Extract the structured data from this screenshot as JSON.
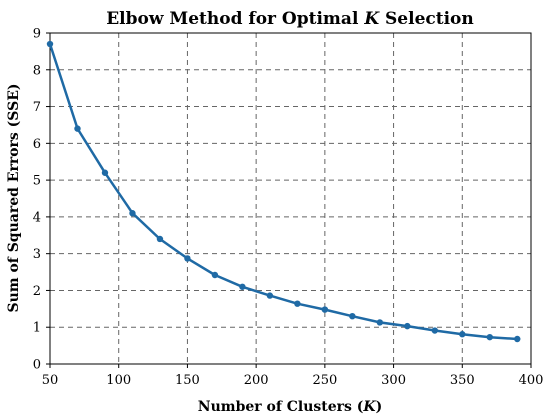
{
  "chart_data": {
    "type": "line",
    "title_prefix": "Elbow Method for Optimal ",
    "title_var": "K",
    "title_suffix": " Selection",
    "xlabel_prefix": "Number of Clusters (",
    "xlabel_var": "K",
    "xlabel_suffix": ")",
    "ylabel": "Sum of Squared Errors (SSE)",
    "xlim": [
      50,
      400
    ],
    "ylim": [
      0,
      9
    ],
    "xticks": [
      50,
      100,
      150,
      200,
      250,
      300,
      350,
      400
    ],
    "yticks": [
      0,
      1,
      2,
      3,
      4,
      5,
      6,
      7,
      8,
      9
    ],
    "grid": true,
    "color": "#1f6aa5",
    "series": [
      {
        "x": [
          50,
          70,
          90,
          110,
          130,
          150,
          170,
          190,
          210,
          230,
          250,
          270,
          290,
          310,
          330,
          350,
          370,
          390
        ],
        "values": [
          8.7,
          6.4,
          5.2,
          4.1,
          3.4,
          2.87,
          2.42,
          2.1,
          1.86,
          1.64,
          1.48,
          1.3,
          1.13,
          1.03,
          0.91,
          0.81,
          0.73,
          0.68
        ]
      }
    ]
  }
}
